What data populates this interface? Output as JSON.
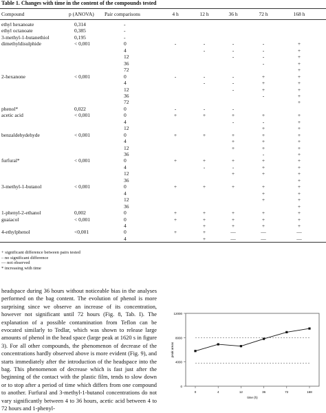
{
  "table": {
    "caption": "Table 1. Changes with time in the content of the compounds tested",
    "headers": [
      "Compound",
      "p (ANOVA)",
      "Pair comparisons",
      "4 h",
      "12 h",
      "36 h",
      "72 h",
      "168 h"
    ],
    "rows": [
      [
        "ethyl hexanoate",
        "0,314",
        "-",
        "",
        "",
        "",
        "",
        ""
      ],
      [
        "ethyl octanoate",
        "0,385",
        "-",
        "",
        "",
        "",
        "",
        ""
      ],
      [
        "3-methyl-1-butanethiol",
        "0,195",
        "-",
        "",
        "",
        "",
        "",
        ""
      ],
      [
        "dimethyldisulphide",
        "< 0,001",
        "0",
        "-",
        "-",
        "-",
        "-",
        "+"
      ],
      [
        "",
        "",
        "4",
        "",
        "-",
        "-",
        "-",
        "+"
      ],
      [
        "",
        "",
        "12",
        "",
        "",
        "-",
        "-",
        "+"
      ],
      [
        "",
        "",
        "36",
        "",
        "",
        "",
        "-",
        "+"
      ],
      [
        "",
        "",
        "72",
        "",
        "",
        "",
        "",
        "+"
      ],
      [
        "2-hexanone",
        "< 0,001",
        "0",
        "-",
        "-",
        "-",
        "+",
        "+"
      ],
      [
        "",
        "",
        "4",
        "",
        "-",
        "-",
        "+",
        "+"
      ],
      [
        "",
        "",
        "12",
        "",
        "",
        "-",
        "+",
        "+"
      ],
      [
        "",
        "",
        "36",
        "",
        "",
        "",
        "-",
        "+"
      ],
      [
        "",
        "",
        "72",
        "",
        "",
        "",
        "",
        "+"
      ],
      [
        "phenol*",
        "0,022",
        "0",
        "-",
        "-",
        "-",
        "",
        ""
      ],
      [
        "acetic acid",
        "< 0,001",
        "0",
        "+",
        "+",
        "+",
        "+",
        "+"
      ],
      [
        "",
        "",
        "4",
        "",
        "",
        "-",
        "-",
        "+"
      ],
      [
        "",
        "",
        "12",
        "",
        "",
        "",
        "+",
        "+"
      ],
      [
        "benzaldehydehyde",
        "< 0,001",
        "0",
        "+",
        "+",
        "+",
        "+",
        "+"
      ],
      [
        "",
        "",
        "4",
        "",
        "",
        "+",
        "+",
        "+"
      ],
      [
        "",
        "",
        "12",
        "",
        "",
        "+",
        "+",
        "+"
      ],
      [
        "",
        "",
        "36",
        "",
        "",
        "",
        "-",
        "+"
      ],
      [
        "furfural*",
        "< 0,001",
        "0",
        "+",
        "+",
        "+",
        "+",
        "+"
      ],
      [
        "",
        "",
        "4",
        "",
        "-",
        "-",
        "+",
        "+"
      ],
      [
        "",
        "",
        "12",
        "",
        "",
        "+",
        "+",
        "+"
      ],
      [
        "",
        "",
        "36",
        "",
        "",
        "",
        "",
        "+"
      ],
      [
        "3-methyl-1-butanol",
        "< 0,001",
        "0",
        "+",
        "+",
        "+",
        "+",
        "+"
      ],
      [
        "",
        "",
        "4",
        "",
        "",
        "",
        "+",
        "+"
      ],
      [
        "",
        "",
        "12",
        "",
        "",
        "",
        "+",
        "+"
      ],
      [
        "",
        "",
        "36",
        "",
        "",
        "",
        "",
        "+"
      ],
      [
        "1-phenyl-2-ethanol",
        "0,002",
        "0",
        "+",
        "+",
        "+",
        "+",
        "+"
      ],
      [
        "guaiacol",
        "< 0,001",
        "0",
        "+",
        "+",
        "+",
        "+",
        "+"
      ],
      [
        "",
        "",
        "4",
        "",
        "+",
        "+",
        "+",
        "+"
      ],
      [
        "4-ethylphenol",
        "<0,001",
        "0",
        "+",
        "+",
        "—",
        "—",
        "—"
      ],
      [
        "",
        "",
        "4",
        "",
        "+",
        "—",
        "—",
        "—"
      ]
    ]
  },
  "footnotes": [
    "+  significant difference between pairs tested",
    "–  no significant difference",
    "—  not observed",
    "*   increasing with time"
  ],
  "paragraph": "headspace during 36 hours without noticeable bias in the analyses performed on the bag content. The evolution of phenol is more surprising since we observe an increase of its concentration, however not significant until 72 hours (Fig. 8, Tab. I). The explanation of a possible contamination from Teflon can be evocated similarly to Tedlar, which was shown to release large amounts of phenol in the head space (large peak at 1620 s in figure 3). For all other compounds, the phenomenon of decrease of the concentrations hardly observed above is more evident (Fig. 9), and starts immediately after the introduction of the headspace into the bag. This phenomenon of decrease which is fast just after the beginning of the contact with the plastic film, tends to slow down or to stop after a period of time which differs from one compound to another. Furfural and 3-methyl-1-butanol concentrations do not vary significantly between 4 to 36 hours, acetic acid between 4 to 72 hours and 1-phenyl-",
  "chart_data": {
    "type": "line",
    "categories": [
      "0",
      "4",
      "12",
      "36",
      "72",
      "168"
    ],
    "values": [
      5800,
      6900,
      6600,
      7800,
      8900,
      9500
    ],
    "upper_band": [
      8000,
      8000,
      8000,
      8000,
      8000,
      8000
    ],
    "lower_band": [
      3800,
      3800,
      3800,
      3800,
      3800,
      3800
    ],
    "xlabel": "time (h)",
    "ylabel": "peak areas",
    "ylim": [
      0,
      12000
    ],
    "yticks": [
      "0",
      "4000",
      "8000",
      "12000"
    ]
  }
}
